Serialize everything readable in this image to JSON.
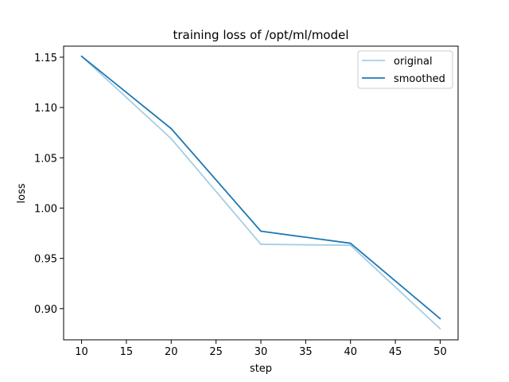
{
  "chart_data": {
    "type": "line",
    "title": "training loss of /opt/ml/model",
    "xlabel": "step",
    "ylabel": "loss",
    "xlim": [
      8,
      52
    ],
    "ylim": [
      0.869,
      1.161
    ],
    "xticks": [
      10,
      15,
      20,
      25,
      30,
      35,
      40,
      45,
      50
    ],
    "yticks": [
      0.9,
      0.95,
      1.0,
      1.05,
      1.1,
      1.15
    ],
    "ytick_labels": [
      "0.90",
      "0.95",
      "1.00",
      "1.05",
      "1.10",
      "1.15"
    ],
    "grid": false,
    "legend_position": "top-right",
    "x": [
      10,
      20,
      30,
      40,
      50
    ],
    "series": [
      {
        "name": "original",
        "color": "#a6cee3",
        "values": [
          1.151,
          1.069,
          0.964,
          0.963,
          0.88
        ]
      },
      {
        "name": "smoothed",
        "color": "#1f78b4",
        "values": [
          1.151,
          1.079,
          0.977,
          0.965,
          0.89
        ]
      }
    ]
  }
}
